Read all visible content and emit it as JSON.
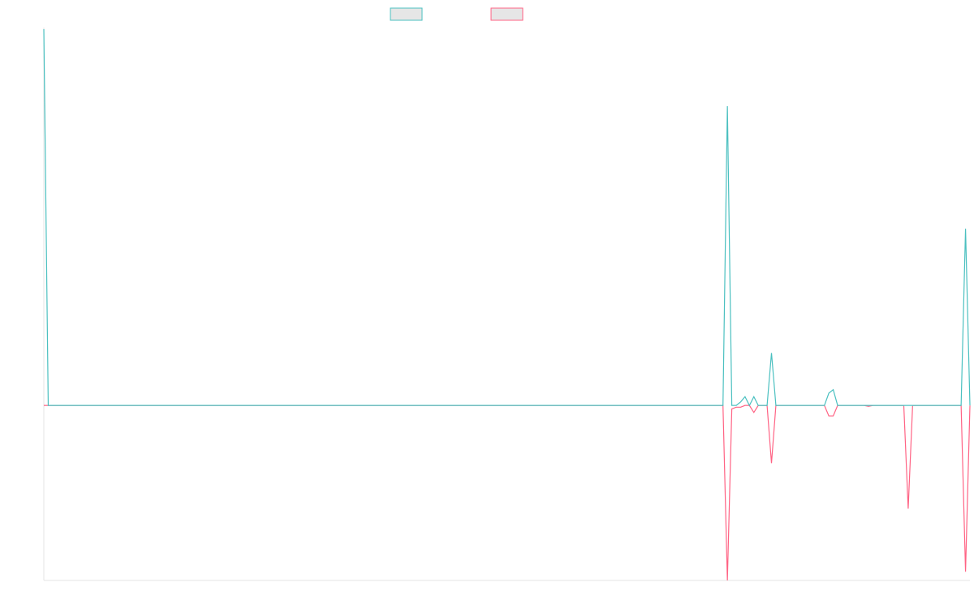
{
  "chart_data": {
    "type": "line",
    "title": "",
    "xlabel": "",
    "ylabel": "",
    "grid": false,
    "legend_position": "top-center",
    "x_count": 210,
    "ylim": [
      -1.0,
      2.15
    ],
    "series": [
      {
        "color": "#4bc0c0",
        "fill": "#e6e6e6",
        "points": [
          [
            0,
            2.15
          ],
          [
            1,
            0.0
          ],
          [
            154,
            0.0
          ],
          [
            155,
            1.71
          ],
          [
            156,
            0.0
          ],
          [
            157,
            0.0
          ],
          [
            158,
            0.02
          ],
          [
            159,
            0.05
          ],
          [
            160,
            0.0
          ],
          [
            161,
            0.05
          ],
          [
            162,
            0.0
          ],
          [
            164,
            0.0
          ],
          [
            165,
            0.3
          ],
          [
            166,
            0.0
          ],
          [
            177,
            0.0
          ],
          [
            178,
            0.07
          ],
          [
            179,
            0.09
          ],
          [
            180,
            0.0
          ],
          [
            186,
            0.0
          ],
          [
            187,
            0.0
          ],
          [
            188,
            0.0
          ],
          [
            189,
            0.0
          ],
          [
            194,
            0.0
          ],
          [
            195,
            0.0
          ],
          [
            196,
            0.0
          ],
          [
            197,
            0.0
          ],
          [
            208,
            0.0
          ],
          [
            209,
            1.01
          ],
          [
            210,
            0.0
          ]
        ]
      },
      {
        "color": "#ff6384",
        "fill": "#e6e6e6",
        "points": [
          [
            0,
            0.0
          ],
          [
            154,
            0.0
          ],
          [
            155,
            -1.0
          ],
          [
            156,
            -0.02
          ],
          [
            157,
            -0.01
          ],
          [
            158,
            -0.01
          ],
          [
            159,
            0.0
          ],
          [
            160,
            0.0
          ],
          [
            161,
            -0.04
          ],
          [
            162,
            0.0
          ],
          [
            164,
            0.0
          ],
          [
            165,
            -0.33
          ],
          [
            166,
            0.0
          ],
          [
            177,
            0.0
          ],
          [
            178,
            -0.06
          ],
          [
            179,
            -0.06
          ],
          [
            180,
            0.0
          ],
          [
            186,
            0.0
          ],
          [
            187,
            -0.005
          ],
          [
            188,
            0.0
          ],
          [
            194,
            0.0
          ],
          [
            195,
            0.0
          ],
          [
            196,
            -0.59
          ],
          [
            197,
            0.0
          ],
          [
            208,
            0.0
          ],
          [
            209,
            -0.95
          ],
          [
            210,
            0.0
          ]
        ]
      }
    ]
  }
}
